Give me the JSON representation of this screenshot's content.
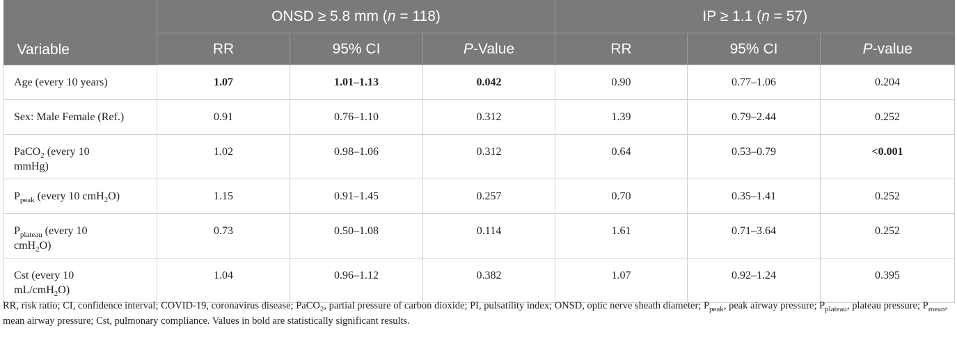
{
  "header": {
    "group1": {
      "prefix": "ONSD ≥ 5.8 mm (",
      "n": "n",
      "suffix": " = 118)"
    },
    "group2": {
      "prefix": "IP ≥ 1.1 (",
      "n": "n",
      "suffix": " = 57)"
    },
    "variable": "Variable",
    "g1_cols": {
      "rr": "RR",
      "ci": "95% CI",
      "p_italic": "P",
      "p_rest": "-Value"
    },
    "g2_cols": {
      "rr": "RR",
      "ci": "95% CI",
      "p_italic": "P",
      "p_rest": "-value"
    }
  },
  "rows": [
    {
      "var": "Age (every 10 years)",
      "rr1": "1.07",
      "ci1": "1.01–1.13",
      "p1": "0.042",
      "rr2": "0.90",
      "ci2": "0.77–1.06",
      "p2": "0.204"
    },
    {
      "var": "Sex: Male Female (Ref.)",
      "rr1": "0.91",
      "ci1": "0.76–1.10",
      "p1": "0.312",
      "rr2": "1.39",
      "ci2": "0.79–2.44",
      "p2": "0.252"
    },
    {
      "var_a": "PaCO",
      "var_sub": "2",
      "var_b": " (every 10",
      "var_c": "mmHg)",
      "rr1": "1.02",
      "ci1": "0.98–1.06",
      "p1": "0.312",
      "rr2": "0.64",
      "ci2": "0.53–0.79",
      "p2": "<0.001"
    },
    {
      "var_a": "P",
      "var_sub": "peak",
      "var_b": " (every 10 cmH",
      "var_sub2": "2",
      "var_c": "O)",
      "rr1": "1.15",
      "ci1": "0.91–1.45",
      "p1": "0.257",
      "rr2": "0.70",
      "ci2": "0.35–1.41",
      "p2": "0.252"
    },
    {
      "var_a": "P",
      "var_sub": "plateau",
      "var_b": " (every 10",
      "var_c1": "cmH",
      "var_sub2": "2",
      "var_c2": "O)",
      "rr1": "0.73",
      "ci1": "0.50–1.08",
      "p1": "0.114",
      "rr2": "1.61",
      "ci2": "0.71–3.64",
      "p2": "0.252"
    },
    {
      "var_a": "Cst (every 10",
      "var_c1": "mL/cmH",
      "var_sub2": "2",
      "var_c2": "O)",
      "rr1": "1.04",
      "ci1": "0.96–1.12",
      "p1": "0.382",
      "rr2": "1.07",
      "ci2": "0.92–1.24",
      "p2": "0.395"
    }
  ],
  "footnote": {
    "t1": "RR, risk ratio; CI, confidence interval; COVID-19, coronavirus disease; PaCO",
    "s1": "2",
    "t2": ", partial pressure of carbon dioxide; PI, pulsatility index; ONSD, optic nerve sheath diameter; P",
    "s2": "peak",
    "t3": ", peak airway pressure; P",
    "s3": "plateau",
    "t4": ", plateau pressure; P",
    "s4": "mean",
    "t5": ", mean airway pressure; Cst, pulmonary compliance. Values in bold are statistically significant results."
  }
}
